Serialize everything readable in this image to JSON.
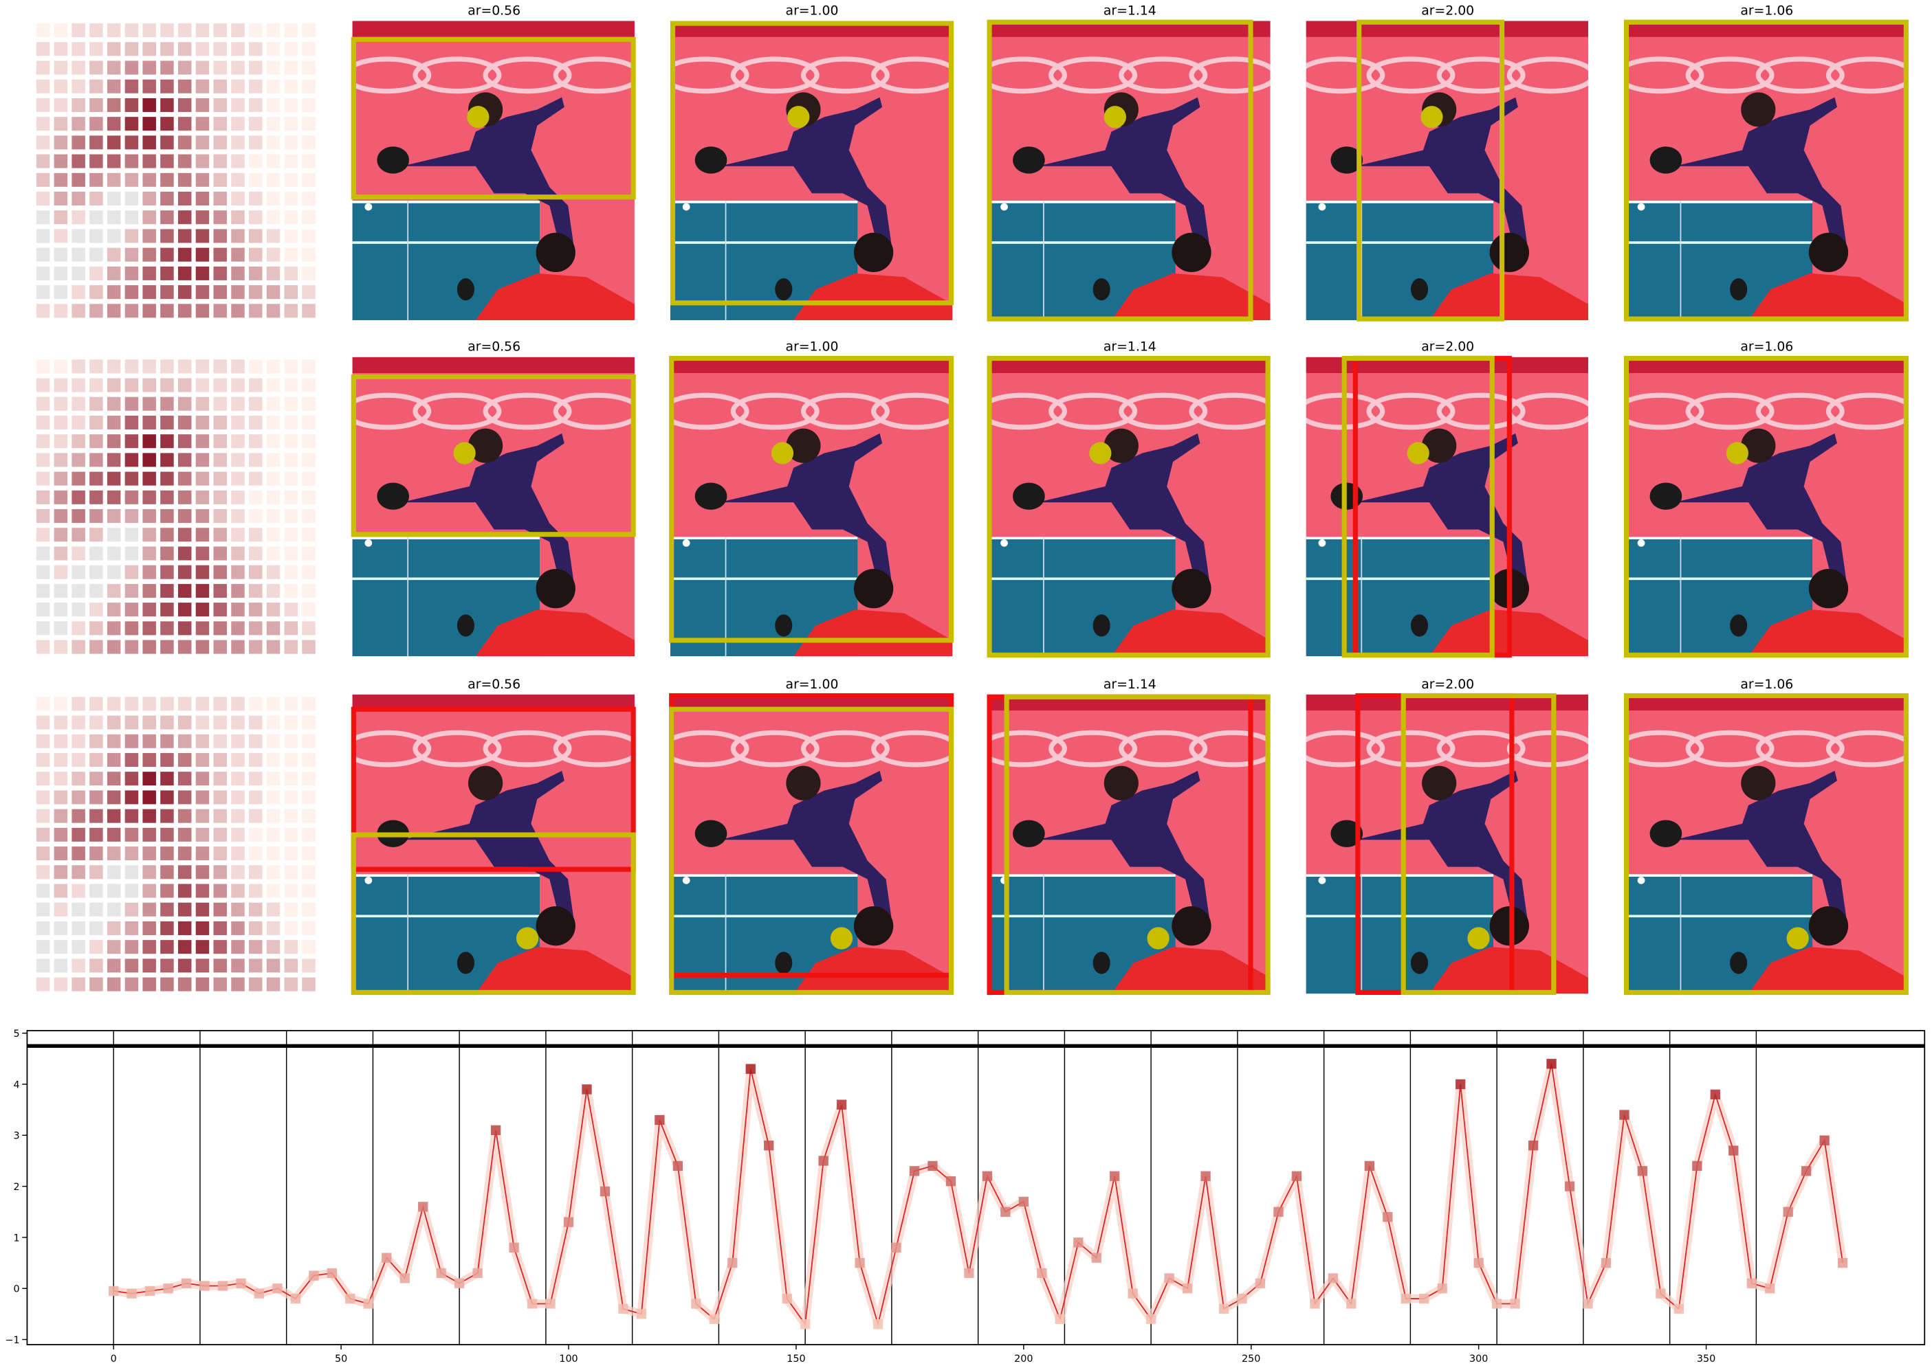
{
  "panel_titles": [
    [
      "ar=0.56",
      "ar=1.00",
      "ar=1.14",
      "ar=2.00",
      "ar=1.06"
    ],
    [
      "ar=0.56",
      "ar=1.00",
      "ar=1.14",
      "ar=2.00",
      "ar=1.06"
    ],
    [
      "ar=0.56",
      "ar=1.00",
      "ar=1.14",
      "ar=2.00",
      "ar=1.06"
    ]
  ],
  "chart_data": [
    {
      "type": "heatmap",
      "colors": [
        "#fff1ec",
        "#8b1a2c"
      ],
      "missing_color": "#e6e6e6",
      "values": [
        [
          0,
          0,
          1,
          1,
          1,
          1,
          1,
          1,
          1,
          1,
          1,
          1,
          0,
          0,
          0,
          0
        ],
        [
          1,
          1,
          1,
          1,
          2,
          2,
          2,
          2,
          2,
          1,
          1,
          1,
          1,
          0,
          0,
          0
        ],
        [
          1,
          1,
          1,
          2,
          3,
          4,
          4,
          4,
          3,
          2,
          1,
          1,
          1,
          0,
          0,
          0
        ],
        [
          1,
          1,
          1,
          2,
          4,
          6,
          6,
          6,
          5,
          3,
          2,
          1,
          1,
          0,
          0,
          0
        ],
        [
          1,
          1,
          2,
          3,
          5,
          7,
          9,
          8,
          6,
          4,
          2,
          1,
          1,
          0,
          0,
          0
        ],
        [
          1,
          2,
          3,
          4,
          6,
          8,
          9,
          8,
          6,
          4,
          2,
          1,
          1,
          0,
          0,
          0
        ],
        [
          1,
          3,
          5,
          6,
          7,
          7,
          8,
          7,
          5,
          3,
          2,
          1,
          1,
          0,
          0,
          0
        ],
        [
          2,
          4,
          6,
          6,
          6,
          5,
          6,
          6,
          5,
          3,
          2,
          1,
          0,
          0,
          0,
          0
        ],
        [
          2,
          4,
          5,
          4,
          3,
          3,
          4,
          5,
          5,
          4,
          2,
          1,
          0,
          0,
          0,
          0
        ],
        [
          1,
          3,
          3,
          2,
          null,
          null,
          3,
          5,
          6,
          5,
          3,
          1,
          1,
          0,
          0,
          0
        ],
        [
          null,
          2,
          1,
          null,
          null,
          null,
          3,
          5,
          7,
          6,
          4,
          2,
          1,
          0,
          0,
          0
        ],
        [
          null,
          1,
          null,
          null,
          null,
          2,
          4,
          6,
          7,
          7,
          5,
          3,
          2,
          1,
          0,
          0
        ],
        [
          null,
          null,
          null,
          null,
          2,
          3,
          5,
          7,
          8,
          8,
          6,
          4,
          2,
          1,
          0,
          0
        ],
        [
          null,
          null,
          null,
          1,
          3,
          4,
          6,
          7,
          8,
          8,
          6,
          4,
          3,
          2,
          1,
          0
        ],
        [
          null,
          null,
          1,
          2,
          4,
          5,
          6,
          6,
          7,
          6,
          5,
          4,
          3,
          3,
          2,
          1
        ],
        [
          1,
          1,
          2,
          3,
          4,
          4,
          5,
          5,
          5,
          5,
          4,
          4,
          3,
          3,
          2,
          2
        ]
      ]
    },
    {
      "type": "line",
      "color": "#d62728",
      "halo_color": "#f9cfc3",
      "marker_colors": [
        "#fcd2c2",
        "#a50f15"
      ],
      "x": [
        0,
        4,
        8,
        12,
        16,
        20,
        24,
        28,
        32,
        36,
        40,
        44,
        48,
        52,
        56,
        60,
        64,
        68,
        72,
        76,
        80,
        84,
        88,
        92,
        96,
        100,
        104,
        108,
        112,
        116,
        120,
        124,
        128,
        132,
        136,
        140,
        144,
        148,
        152,
        156,
        160,
        164,
        168,
        172,
        176,
        180,
        184,
        188,
        192,
        196,
        200,
        204,
        208,
        212,
        216,
        220,
        224,
        228,
        232,
        236,
        240,
        244,
        248,
        252,
        256,
        260,
        264,
        268,
        272,
        276,
        280,
        284,
        288,
        292,
        296,
        300,
        304,
        308,
        312,
        316,
        320,
        324,
        328,
        332,
        336,
        340,
        344,
        348,
        352,
        356,
        360,
        364,
        368,
        372,
        376,
        380
      ],
      "values": [
        -0.05,
        -0.1,
        -0.05,
        0.0,
        0.1,
        0.05,
        0.05,
        0.1,
        -0.1,
        0.0,
        -0.2,
        0.25,
        0.3,
        -0.2,
        -0.3,
        0.6,
        0.2,
        1.6,
        0.3,
        0.1,
        0.3,
        3.1,
        0.8,
        -0.3,
        -0.3,
        1.3,
        3.9,
        1.9,
        -0.4,
        -0.5,
        3.3,
        2.4,
        -0.3,
        -0.6,
        0.5,
        4.3,
        2.8,
        -0.2,
        -0.7,
        2.5,
        3.6,
        0.5,
        -0.7,
        0.8,
        2.3,
        2.4,
        2.1,
        0.3,
        2.2,
        1.5,
        1.7,
        0.3,
        -0.6,
        0.9,
        0.6,
        2.2,
        -0.1,
        -0.6,
        0.2,
        0.0,
        2.2,
        -0.4,
        -0.2,
        0.1,
        1.5,
        2.2,
        -0.3,
        0.2,
        -0.3,
        2.4,
        1.4,
        -0.2,
        -0.2,
        0.0,
        4.0,
        0.5,
        -0.3,
        -0.3,
        2.8,
        4.4,
        2.0,
        -0.3,
        0.5,
        3.4,
        2.3,
        -0.1,
        -0.4,
        2.4,
        3.8,
        2.7,
        0.1,
        0.0,
        1.5,
        2.3,
        2.9,
        0.5
      ],
      "vlines": [
        0,
        19,
        38,
        57,
        76,
        95,
        114,
        133,
        152,
        171,
        190,
        209,
        228,
        247,
        266,
        285,
        304,
        323,
        342,
        361
      ],
      "hline": 4.75,
      "xlim": [
        -19,
        398
      ],
      "ylim": [
        -1.1,
        5.05
      ],
      "xticks": [
        0,
        50,
        100,
        150,
        200,
        250,
        300,
        350
      ],
      "yticks": [
        {
          "value": -1,
          "label": "−1"
        },
        0,
        1,
        2,
        3,
        4,
        5
      ]
    }
  ]
}
